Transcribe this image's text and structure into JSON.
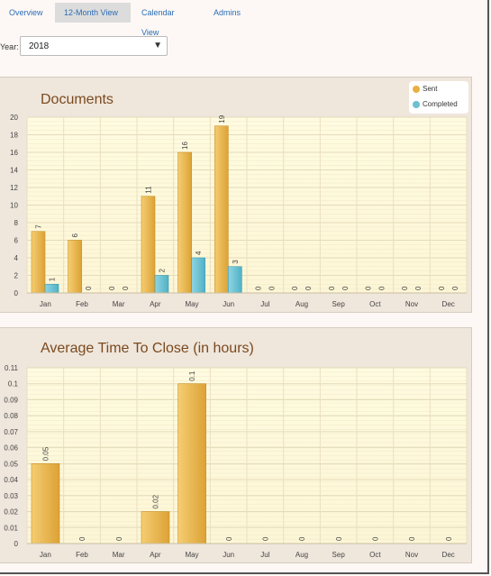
{
  "tabs": [
    {
      "label": "Overview",
      "active": false
    },
    {
      "label": "12-Month View",
      "active": true
    },
    {
      "label": "Calendar View",
      "active": false
    },
    {
      "label": "Admins",
      "active": false
    }
  ],
  "year_filter": {
    "label": "Year:",
    "value": "2018"
  },
  "legend": {
    "sent": {
      "label": "Sent",
      "color": "#e8b040"
    },
    "completed": {
      "label": "Completed",
      "color": "#6cc0d0"
    }
  },
  "chart_data": [
    {
      "type": "bar",
      "title": "Documents",
      "categories": [
        "Jan",
        "Feb",
        "Mar",
        "Apr",
        "May",
        "Jun",
        "Jul",
        "Aug",
        "Sep",
        "Oct",
        "Nov",
        "Dec"
      ],
      "series": [
        {
          "name": "Sent",
          "values": [
            7,
            6,
            0,
            11,
            16,
            19,
            0,
            0,
            0,
            0,
            0,
            0
          ]
        },
        {
          "name": "Completed",
          "values": [
            1,
            0,
            0,
            2,
            4,
            3,
            0,
            0,
            0,
            0,
            0,
            0
          ]
        }
      ],
      "ylim": [
        0,
        20
      ],
      "yticks": [
        "0",
        "2",
        "4",
        "6",
        "8",
        "10",
        "12",
        "14",
        "16",
        "18",
        "20"
      ],
      "grid": true,
      "legend": "top-right"
    },
    {
      "type": "bar",
      "title": "Average Time To Close (in hours)",
      "categories": [
        "Jan",
        "Feb",
        "Mar",
        "Apr",
        "May",
        "Jun",
        "Jul",
        "Aug",
        "Sep",
        "Oct",
        "Nov",
        "Dec"
      ],
      "series": [
        {
          "values": [
            0.05,
            0,
            0,
            0.02,
            0.1,
            0,
            0,
            0,
            0,
            0,
            0,
            0
          ]
        }
      ],
      "ylim": [
        0,
        0.11
      ],
      "yticks": [
        "0",
        "0.01",
        "0.02",
        "0.03",
        "0.04",
        "0.05",
        "0.06",
        "0.07",
        "0.08",
        "0.09",
        "0.1",
        "0.11"
      ],
      "grid": true
    }
  ]
}
